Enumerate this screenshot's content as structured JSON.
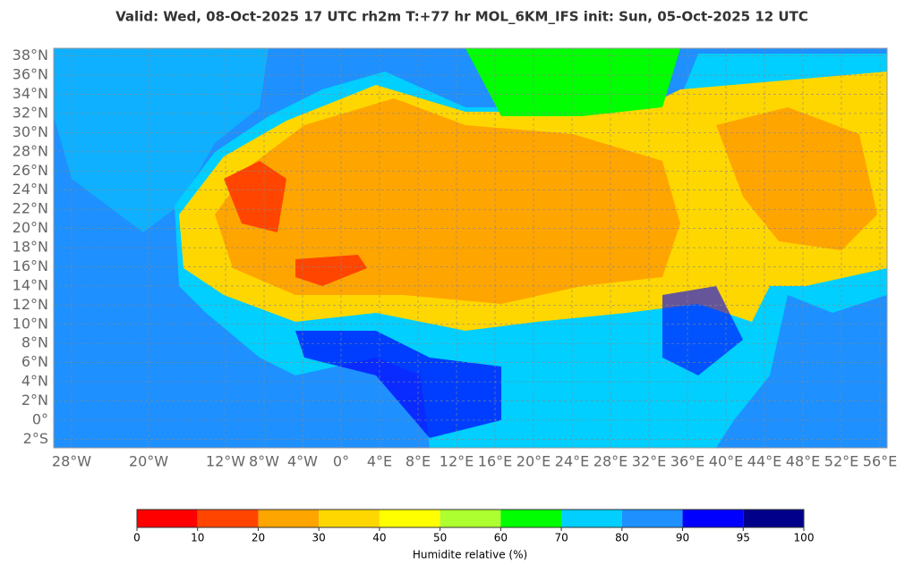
{
  "header": {
    "title": "Valid: Wed, 08-Oct-2025   17 UTC   rh2m   T:+77 hr   MOL_6KM_IFS      init: Sun, 05-Oct-2025   12 UTC"
  },
  "map": {
    "lat_ticks": [
      {
        "value": 38,
        "label": "38°N"
      },
      {
        "value": 36,
        "label": "36°N"
      },
      {
        "value": 34,
        "label": "34°N"
      },
      {
        "value": 32,
        "label": "32°N"
      },
      {
        "value": 30,
        "label": "30°N"
      },
      {
        "value": 28,
        "label": "28°N"
      },
      {
        "value": 26,
        "label": "26°N"
      },
      {
        "value": 24,
        "label": "24°N"
      },
      {
        "value": 22,
        "label": "22°N"
      },
      {
        "value": 20,
        "label": "20°N"
      },
      {
        "value": 18,
        "label": "18°N"
      },
      {
        "value": 16,
        "label": "16°N"
      },
      {
        "value": 14,
        "label": "14°N"
      },
      {
        "value": 12,
        "label": "12°N"
      },
      {
        "value": 10,
        "label": "10°N"
      },
      {
        "value": 8,
        "label": "8°N"
      },
      {
        "value": 6,
        "label": "6°N"
      },
      {
        "value": 4,
        "label": "4°N"
      },
      {
        "value": 2,
        "label": "2°N"
      },
      {
        "value": 0,
        "label": "0°"
      },
      {
        "value": -2,
        "label": "2°S"
      }
    ],
    "lon_ticks": [
      {
        "value": -28,
        "label": "28°W"
      },
      {
        "value": -20,
        "label": "20°W"
      },
      {
        "value": -12,
        "label": "12°W"
      },
      {
        "value": -8,
        "label": "8°W"
      },
      {
        "value": -4,
        "label": "4°W"
      },
      {
        "value": 0,
        "label": "0°"
      },
      {
        "value": 4,
        "label": "4°E"
      },
      {
        "value": 8,
        "label": "8°E"
      },
      {
        "value": 12,
        "label": "12°E"
      },
      {
        "value": 16,
        "label": "16°E"
      },
      {
        "value": 20,
        "label": "20°E"
      },
      {
        "value": 24,
        "label": "24°E"
      },
      {
        "value": 28,
        "label": "28°E"
      },
      {
        "value": 32,
        "label": "32°E"
      },
      {
        "value": 36,
        "label": "36°E"
      },
      {
        "value": 40,
        "label": "40°E"
      },
      {
        "value": 44,
        "label": "44°E"
      },
      {
        "value": 48,
        "label": "48°E"
      },
      {
        "value": 52,
        "label": "52°E"
      },
      {
        "value": 56,
        "label": "56°E"
      }
    ]
  },
  "colorbar": {
    "ticks": [
      0,
      10,
      20,
      30,
      40,
      50,
      60,
      70,
      80,
      90,
      95,
      100
    ],
    "colors": [
      "#ff0000",
      "#ff4500",
      "#ffa500",
      "#ffd700",
      "#ffff00",
      "#adff2f",
      "#00ff00",
      "#00cfff",
      "#1e90ff",
      "#0000ff",
      "#00008b"
    ],
    "label": "Humidite relative (%)"
  }
}
